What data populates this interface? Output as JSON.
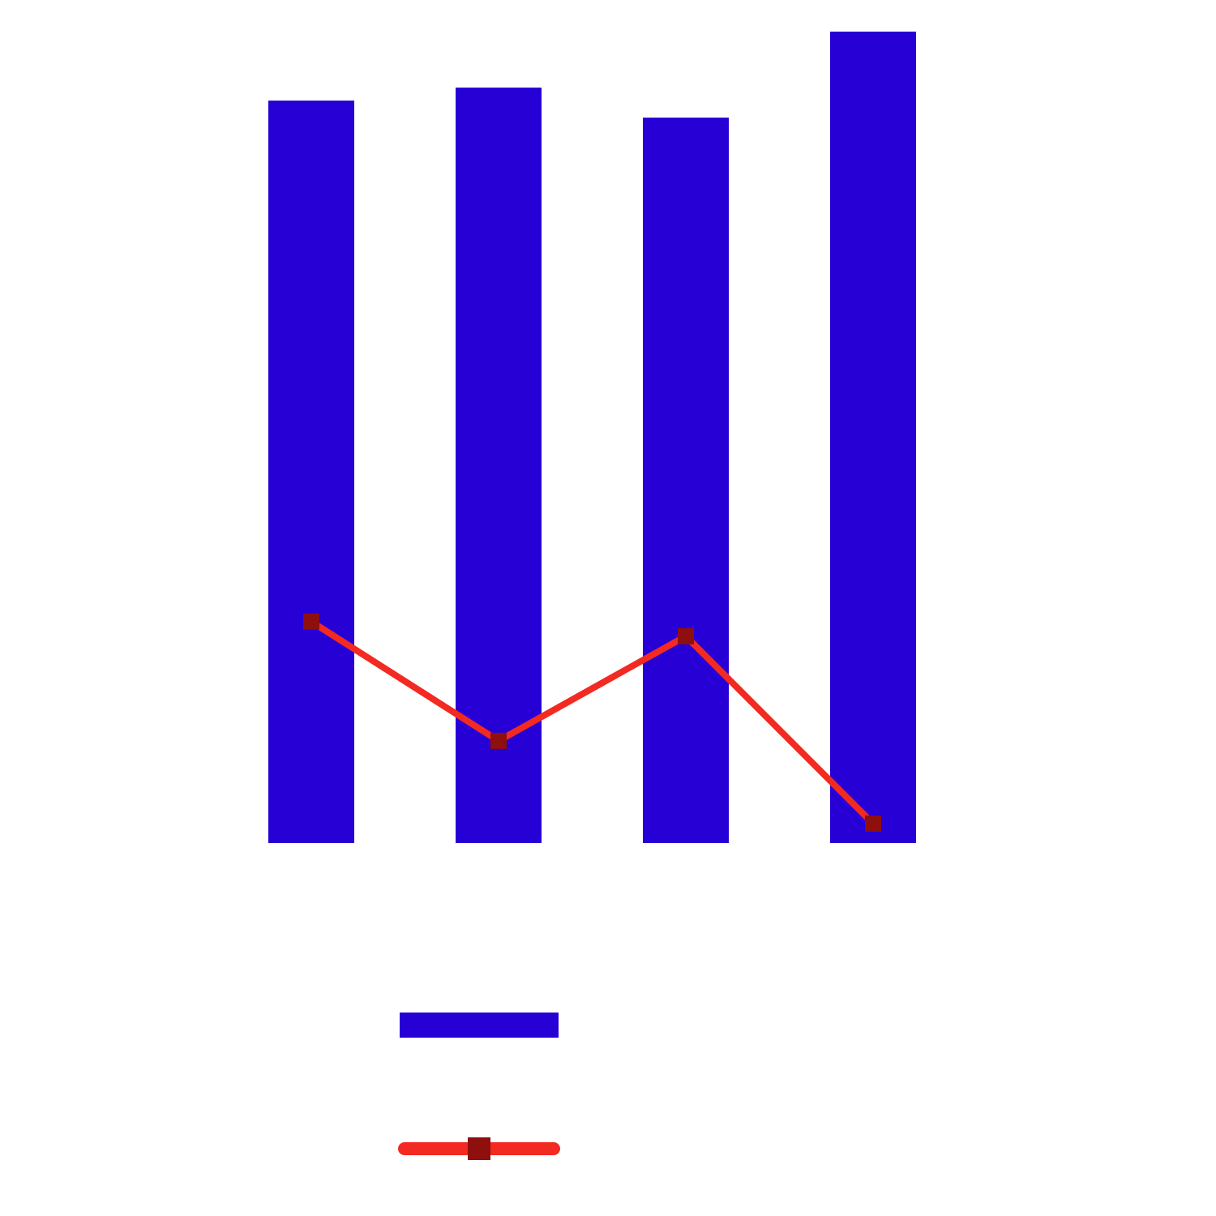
{
  "chart_data": {
    "type": "bar",
    "categories": [
      null,
      null,
      null,
      null
    ],
    "ylim": [
      0,
      100
    ],
    "legend": "bottom",
    "series": [
      {
        "type": "bar",
        "color": "#2600d4",
        "values": [
          91.5,
          93.1,
          89.4,
          100
        ]
      },
      {
        "type": "line",
        "color": "#f22a22",
        "marker_color": "#8f0e0e",
        "values": [
          27.3,
          12.6,
          25.5,
          2.4
        ]
      }
    ]
  }
}
